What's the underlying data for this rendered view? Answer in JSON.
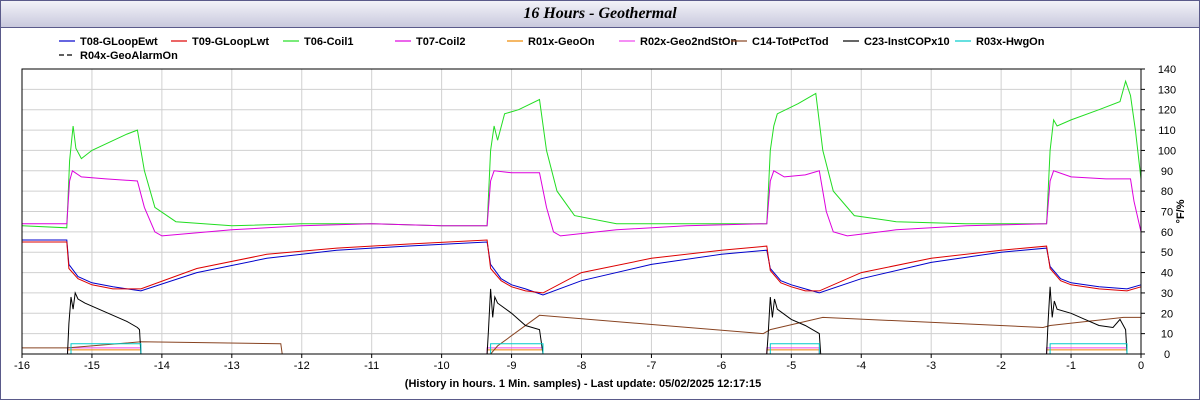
{
  "chart_data": {
    "type": "line",
    "title": "16 Hours - Geothermal",
    "footer": "(History in hours. 1 Min. samples) - Last update: 05/02/2025 12:17:15",
    "ylabel": "°F/%",
    "xlim": [
      -16,
      0
    ],
    "ylim": [
      0,
      140
    ],
    "x_ticks": [
      -16,
      -15,
      -14,
      -13,
      -12,
      -11,
      -10,
      -9,
      -8,
      -7,
      -6,
      -5,
      -4,
      -3,
      -2,
      -1,
      0
    ],
    "y_ticks": [
      0,
      10,
      20,
      30,
      40,
      50,
      60,
      70,
      80,
      90,
      100,
      110,
      120,
      130,
      140
    ],
    "grid": true,
    "legend_position": "top",
    "series": [
      {
        "name": "T08-GLoopEwt",
        "color": "#0000cc",
        "dash": "",
        "points": [
          [
            -16,
            56
          ],
          [
            -15.36,
            56
          ],
          [
            -15.33,
            44
          ],
          [
            -15.2,
            38
          ],
          [
            -15.0,
            35
          ],
          [
            -14.7,
            33
          ],
          [
            -14.3,
            31
          ],
          [
            -13.5,
            40
          ],
          [
            -12.5,
            47
          ],
          [
            -11.5,
            51
          ],
          [
            -10.5,
            53
          ],
          [
            -9.35,
            55
          ],
          [
            -9.3,
            44
          ],
          [
            -9.15,
            37
          ],
          [
            -9.0,
            34
          ],
          [
            -8.8,
            32
          ],
          [
            -8.55,
            29
          ],
          [
            -8.0,
            36
          ],
          [
            -7.0,
            44
          ],
          [
            -6.0,
            49
          ],
          [
            -5.35,
            51
          ],
          [
            -5.3,
            42
          ],
          [
            -5.15,
            36
          ],
          [
            -5.0,
            34
          ],
          [
            -4.8,
            32
          ],
          [
            -4.6,
            30
          ],
          [
            -4.0,
            37
          ],
          [
            -3.0,
            45
          ],
          [
            -2.0,
            50
          ],
          [
            -1.35,
            52
          ],
          [
            -1.3,
            43
          ],
          [
            -1.15,
            37
          ],
          [
            -1.0,
            35
          ],
          [
            -0.6,
            33
          ],
          [
            -0.2,
            32
          ],
          [
            0,
            34
          ]
        ]
      },
      {
        "name": "T09-GLoopLwt",
        "color": "#dd0000",
        "dash": "",
        "points": [
          [
            -16,
            55
          ],
          [
            -15.36,
            55
          ],
          [
            -15.33,
            42
          ],
          [
            -15.2,
            37
          ],
          [
            -15.0,
            34
          ],
          [
            -14.7,
            32
          ],
          [
            -14.3,
            32
          ],
          [
            -13.5,
            42
          ],
          [
            -12.5,
            49
          ],
          [
            -11.5,
            52
          ],
          [
            -10.5,
            54
          ],
          [
            -9.35,
            56
          ],
          [
            -9.3,
            42
          ],
          [
            -9.15,
            36
          ],
          [
            -9.0,
            33
          ],
          [
            -8.8,
            31
          ],
          [
            -8.55,
            30
          ],
          [
            -8.0,
            40
          ],
          [
            -7.0,
            47
          ],
          [
            -6.0,
            51
          ],
          [
            -5.35,
            53
          ],
          [
            -5.3,
            41
          ],
          [
            -5.15,
            35
          ],
          [
            -5.0,
            33
          ],
          [
            -4.8,
            31
          ],
          [
            -4.6,
            31
          ],
          [
            -4.0,
            40
          ],
          [
            -3.0,
            47
          ],
          [
            -2.0,
            51
          ],
          [
            -1.35,
            53
          ],
          [
            -1.3,
            42
          ],
          [
            -1.15,
            36
          ],
          [
            -1.0,
            34
          ],
          [
            -0.6,
            32
          ],
          [
            -0.2,
            31
          ],
          [
            0,
            33
          ]
        ]
      },
      {
        "name": "T06-Coil1",
        "color": "#22dd22",
        "dash": "",
        "points": [
          [
            -16,
            63
          ],
          [
            -15.36,
            62
          ],
          [
            -15.32,
            95
          ],
          [
            -15.27,
            112
          ],
          [
            -15.23,
            101
          ],
          [
            -15.15,
            96
          ],
          [
            -15.0,
            100
          ],
          [
            -14.5,
            108
          ],
          [
            -14.35,
            110
          ],
          [
            -14.25,
            90
          ],
          [
            -14.1,
            72
          ],
          [
            -13.8,
            65
          ],
          [
            -13.0,
            63
          ],
          [
            -12.0,
            64
          ],
          [
            -11.0,
            64
          ],
          [
            -10.0,
            63
          ],
          [
            -9.35,
            63
          ],
          [
            -9.3,
            100
          ],
          [
            -9.25,
            112
          ],
          [
            -9.2,
            105
          ],
          [
            -9.1,
            118
          ],
          [
            -8.9,
            120
          ],
          [
            -8.6,
            125
          ],
          [
            -8.5,
            100
          ],
          [
            -8.35,
            80
          ],
          [
            -8.1,
            68
          ],
          [
            -7.5,
            64
          ],
          [
            -6.5,
            64
          ],
          [
            -5.35,
            64
          ],
          [
            -5.3,
            100
          ],
          [
            -5.25,
            112
          ],
          [
            -5.2,
            118
          ],
          [
            -4.9,
            123
          ],
          [
            -4.65,
            128
          ],
          [
            -4.55,
            100
          ],
          [
            -4.4,
            80
          ],
          [
            -4.1,
            68
          ],
          [
            -3.5,
            65
          ],
          [
            -2.5,
            64
          ],
          [
            -1.35,
            64
          ],
          [
            -1.3,
            100
          ],
          [
            -1.25,
            115
          ],
          [
            -1.2,
            112
          ],
          [
            -1.0,
            115
          ],
          [
            -0.6,
            120
          ],
          [
            -0.3,
            124
          ],
          [
            -0.22,
            134
          ],
          [
            -0.15,
            127
          ],
          [
            -0.08,
            110
          ],
          [
            0,
            86
          ]
        ]
      },
      {
        "name": "T07-Coil2",
        "color": "#dd00dd",
        "dash": "",
        "points": [
          [
            -16,
            64
          ],
          [
            -15.36,
            64
          ],
          [
            -15.32,
            85
          ],
          [
            -15.28,
            90
          ],
          [
            -15.15,
            87
          ],
          [
            -14.8,
            86
          ],
          [
            -14.35,
            85
          ],
          [
            -14.25,
            72
          ],
          [
            -14.1,
            60
          ],
          [
            -14.0,
            58
          ],
          [
            -13.0,
            61
          ],
          [
            -12.0,
            63
          ],
          [
            -11.0,
            64
          ],
          [
            -10.0,
            63
          ],
          [
            -9.35,
            63
          ],
          [
            -9.3,
            85
          ],
          [
            -9.25,
            90
          ],
          [
            -9.0,
            89
          ],
          [
            -8.6,
            89
          ],
          [
            -8.5,
            72
          ],
          [
            -8.4,
            60
          ],
          [
            -8.3,
            58
          ],
          [
            -7.5,
            61
          ],
          [
            -6.5,
            63
          ],
          [
            -5.35,
            64
          ],
          [
            -5.3,
            85
          ],
          [
            -5.25,
            90
          ],
          [
            -5.1,
            87
          ],
          [
            -4.8,
            88
          ],
          [
            -4.6,
            90
          ],
          [
            -4.5,
            70
          ],
          [
            -4.4,
            60
          ],
          [
            -4.2,
            58
          ],
          [
            -3.5,
            61
          ],
          [
            -2.5,
            63
          ],
          [
            -1.35,
            64
          ],
          [
            -1.3,
            85
          ],
          [
            -1.25,
            90
          ],
          [
            -1.0,
            87
          ],
          [
            -0.5,
            86
          ],
          [
            -0.15,
            86
          ],
          [
            -0.1,
            75
          ],
          [
            0,
            60
          ]
        ]
      },
      {
        "name": "R01x-GeoOn",
        "color": "#ee8800",
        "dash": "",
        "points": [
          [
            -16,
            0
          ],
          [
            -15.35,
            0
          ],
          [
            -15.35,
            2
          ],
          [
            -14.3,
            2
          ],
          [
            -14.3,
            0
          ],
          [
            -9.35,
            0
          ],
          [
            -9.35,
            2
          ],
          [
            -8.55,
            2
          ],
          [
            -8.55,
            0
          ],
          [
            -5.35,
            0
          ],
          [
            -5.35,
            2
          ],
          [
            -4.6,
            2
          ],
          [
            -4.6,
            0
          ],
          [
            -1.35,
            0
          ],
          [
            -1.35,
            2
          ],
          [
            -0.2,
            2
          ],
          [
            -0.2,
            0
          ],
          [
            0,
            0
          ]
        ]
      },
      {
        "name": "R02x-Geo2ndStOn",
        "color": "#ee44ee",
        "dash": "",
        "points": [
          [
            -16,
            0
          ],
          [
            -15.35,
            0
          ],
          [
            -15.35,
            3
          ],
          [
            -14.3,
            3
          ],
          [
            -14.3,
            0
          ],
          [
            -9.35,
            0
          ],
          [
            -9.35,
            3
          ],
          [
            -8.55,
            3
          ],
          [
            -8.55,
            0
          ],
          [
            -5.35,
            0
          ],
          [
            -5.35,
            3
          ],
          [
            -4.6,
            3
          ],
          [
            -4.6,
            0
          ],
          [
            -1.35,
            0
          ],
          [
            -1.35,
            3
          ],
          [
            -0.2,
            3
          ],
          [
            -0.2,
            0
          ],
          [
            0,
            0
          ]
        ]
      },
      {
        "name": "C14-TotPctTod",
        "color": "#884422",
        "dash": "",
        "points": [
          [
            -16,
            3
          ],
          [
            -15.35,
            3
          ],
          [
            -14.3,
            6
          ],
          [
            -12.3,
            5
          ],
          [
            -12.28,
            0
          ],
          [
            -9.3,
            0
          ],
          [
            -9.2,
            4
          ],
          [
            -8.6,
            19
          ],
          [
            -5.4,
            10
          ],
          [
            -5.3,
            12
          ],
          [
            -4.55,
            18
          ],
          [
            -1.4,
            13
          ],
          [
            -1.3,
            14
          ],
          [
            -0.25,
            18
          ],
          [
            0,
            18
          ]
        ]
      },
      {
        "name": "C23-InstCOPx10",
        "color": "#000000",
        "dash": "",
        "points": [
          [
            -16,
            0
          ],
          [
            -15.35,
            0
          ],
          [
            -15.33,
            15
          ],
          [
            -15.3,
            28
          ],
          [
            -15.27,
            22
          ],
          [
            -15.24,
            30
          ],
          [
            -15.2,
            27
          ],
          [
            -15.1,
            25
          ],
          [
            -14.9,
            22
          ],
          [
            -14.7,
            19
          ],
          [
            -14.5,
            16
          ],
          [
            -14.35,
            13
          ],
          [
            -14.32,
            12
          ],
          [
            -14.3,
            0
          ],
          [
            -9.35,
            0
          ],
          [
            -9.33,
            12
          ],
          [
            -9.3,
            32
          ],
          [
            -9.27,
            18
          ],
          [
            -9.24,
            28
          ],
          [
            -9.2,
            25
          ],
          [
            -9.0,
            20
          ],
          [
            -8.8,
            14
          ],
          [
            -8.6,
            12
          ],
          [
            -8.55,
            0
          ],
          [
            -5.35,
            0
          ],
          [
            -5.33,
            10
          ],
          [
            -5.3,
            28
          ],
          [
            -5.27,
            18
          ],
          [
            -5.24,
            27
          ],
          [
            -5.2,
            22
          ],
          [
            -5.0,
            17
          ],
          [
            -4.8,
            14
          ],
          [
            -4.6,
            10
          ],
          [
            -4.58,
            0
          ],
          [
            -1.35,
            0
          ],
          [
            -1.33,
            15
          ],
          [
            -1.3,
            33
          ],
          [
            -1.27,
            18
          ],
          [
            -1.24,
            26
          ],
          [
            -1.2,
            22
          ],
          [
            -1.0,
            20
          ],
          [
            -0.8,
            17
          ],
          [
            -0.6,
            14
          ],
          [
            -0.4,
            13
          ],
          [
            -0.3,
            17
          ],
          [
            -0.22,
            12
          ],
          [
            -0.2,
            0
          ],
          [
            0,
            0
          ]
        ]
      },
      {
        "name": "R03x-HwgOn",
        "color": "#00cccc",
        "dash": "",
        "points": [
          [
            -16,
            0
          ],
          [
            -15.3,
            0
          ],
          [
            -15.3,
            5
          ],
          [
            -14.3,
            5
          ],
          [
            -14.3,
            0
          ],
          [
            -9.3,
            0
          ],
          [
            -9.3,
            5
          ],
          [
            -8.55,
            5
          ],
          [
            -8.55,
            0
          ],
          [
            -5.3,
            0
          ],
          [
            -5.3,
            5
          ],
          [
            -4.6,
            5
          ],
          [
            -4.6,
            0
          ],
          [
            -1.3,
            0
          ],
          [
            -1.3,
            5
          ],
          [
            -0.2,
            5
          ],
          [
            -0.2,
            0
          ],
          [
            0,
            0
          ]
        ]
      },
      {
        "name": "R04x-GeoAlarmOn",
        "color": "#000000",
        "dash": "6,4",
        "points": [
          [
            -16,
            0
          ],
          [
            0,
            0
          ]
        ]
      }
    ]
  }
}
